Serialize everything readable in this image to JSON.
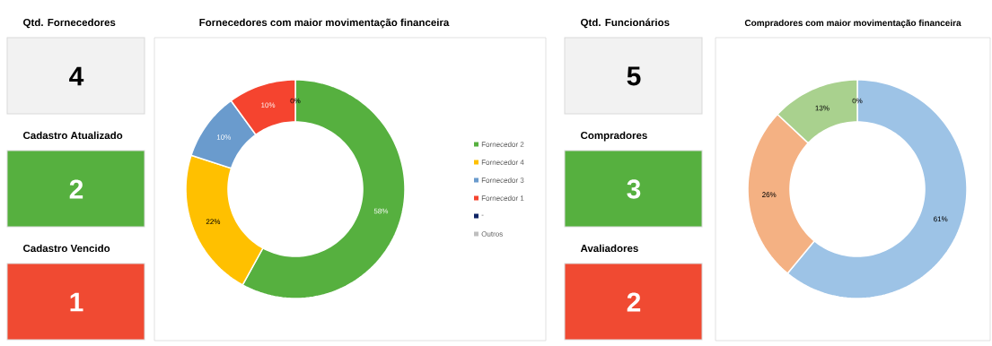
{
  "chart_data": [
    {
      "type": "other",
      "categories": [
        "Qtd. Fornecedores",
        "Cadastro Atualizado",
        "Cadastro Vencido"
      ],
      "values": [
        4,
        2,
        1
      ],
      "value_labels": [
        "4",
        "2",
        "1"
      ],
      "colors": [
        "#f2f2f2",
        "#56b03f",
        "#f04a32"
      ]
    },
    {
      "type": "donut",
      "title": "Fornecedores com maior movimentação financeira",
      "categories": [
        "Fornecedor 2",
        "Fornecedor 4",
        "Fornecedor 3",
        "Fornecedor 1",
        "-",
        "Outros"
      ],
      "values": [
        58,
        22,
        10,
        10,
        0,
        0
      ],
      "colors": [
        "#56b03f",
        "#ffc000",
        "#6a9bcd",
        "#f5442f",
        "#0e2465",
        "#bfbfbf"
      ],
      "value_labels": [
        "58%",
        "22%",
        "10%",
        "10%",
        "0%",
        null
      ],
      "legend": "right"
    },
    {
      "type": "other",
      "categories": [
        "Qtd. Funcionários",
        "Compradores",
        "Avaliadores"
      ],
      "values": [
        5,
        3,
        2
      ],
      "value_labels": [
        "5",
        "3",
        "2"
      ],
      "colors": [
        "#f2f2f2",
        "#56b03f",
        "#f04a32"
      ]
    },
    {
      "type": "donut",
      "title": "Compradores com maior movimentação financeira",
      "categories": [
        null,
        null,
        null,
        null
      ],
      "values": [
        61,
        26,
        13,
        0
      ],
      "colors": [
        "#9dc3e6",
        "#f4b183",
        "#a9d18e",
        "#5b9bd5"
      ],
      "value_labels": [
        "61%",
        "26%",
        "13%",
        "0%"
      ]
    }
  ]
}
